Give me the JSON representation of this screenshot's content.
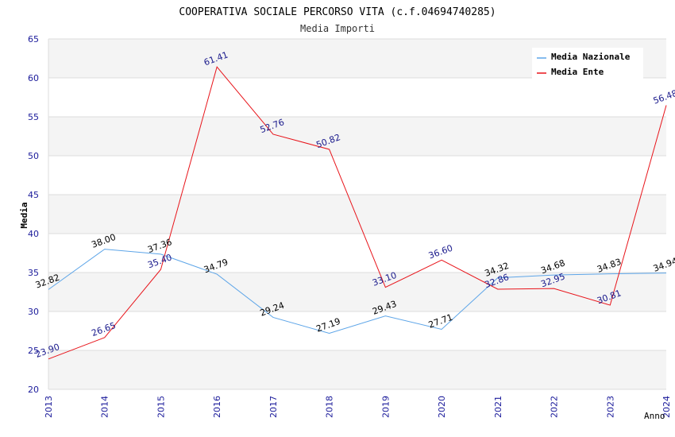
{
  "chart_data": {
    "type": "line",
    "title": "COOPERATIVA SOCIALE PERCORSO VITA (c.f.04694740285)",
    "subtitle": "Media Importi",
    "xlabel": "Anno",
    "ylabel": "Media",
    "ylim": [
      20,
      65
    ],
    "yticks": [
      "20",
      "25",
      "30",
      "35",
      "40",
      "45",
      "50",
      "55",
      "60",
      "65"
    ],
    "x": [
      "2013",
      "2014",
      "2015",
      "2016",
      "2017",
      "2018",
      "2019",
      "2020",
      "2021",
      "2022",
      "2023",
      "2024"
    ],
    "grid": true,
    "legend_position": "top-right",
    "series": [
      {
        "name": "Media Nazionale",
        "color": "#5DA5E8",
        "label_color": "#000000",
        "values": [
          32.82,
          38.0,
          37.36,
          34.79,
          29.24,
          27.19,
          29.43,
          27.71,
          34.32,
          34.68,
          34.83,
          34.94
        ],
        "labels": [
          "32.82",
          "38.00",
          "37.36",
          "34.79",
          "29.24",
          "27.19",
          "29.43",
          "27.71",
          "34.32",
          "34.68",
          "34.83",
          "34.94"
        ]
      },
      {
        "name": "Media Ente",
        "color": "#E8141A",
        "label_color": "#1A1A8C",
        "values": [
          23.9,
          26.65,
          35.4,
          61.41,
          52.76,
          50.82,
          33.1,
          36.6,
          32.86,
          32.95,
          30.81,
          56.48
        ],
        "labels": [
          "23.90",
          "26.65",
          "35.40",
          "61.41",
          "52.76",
          "50.82",
          "33.10",
          "36.60",
          "32.86",
          "32.95",
          "30.81",
          "56.48"
        ]
      }
    ]
  }
}
